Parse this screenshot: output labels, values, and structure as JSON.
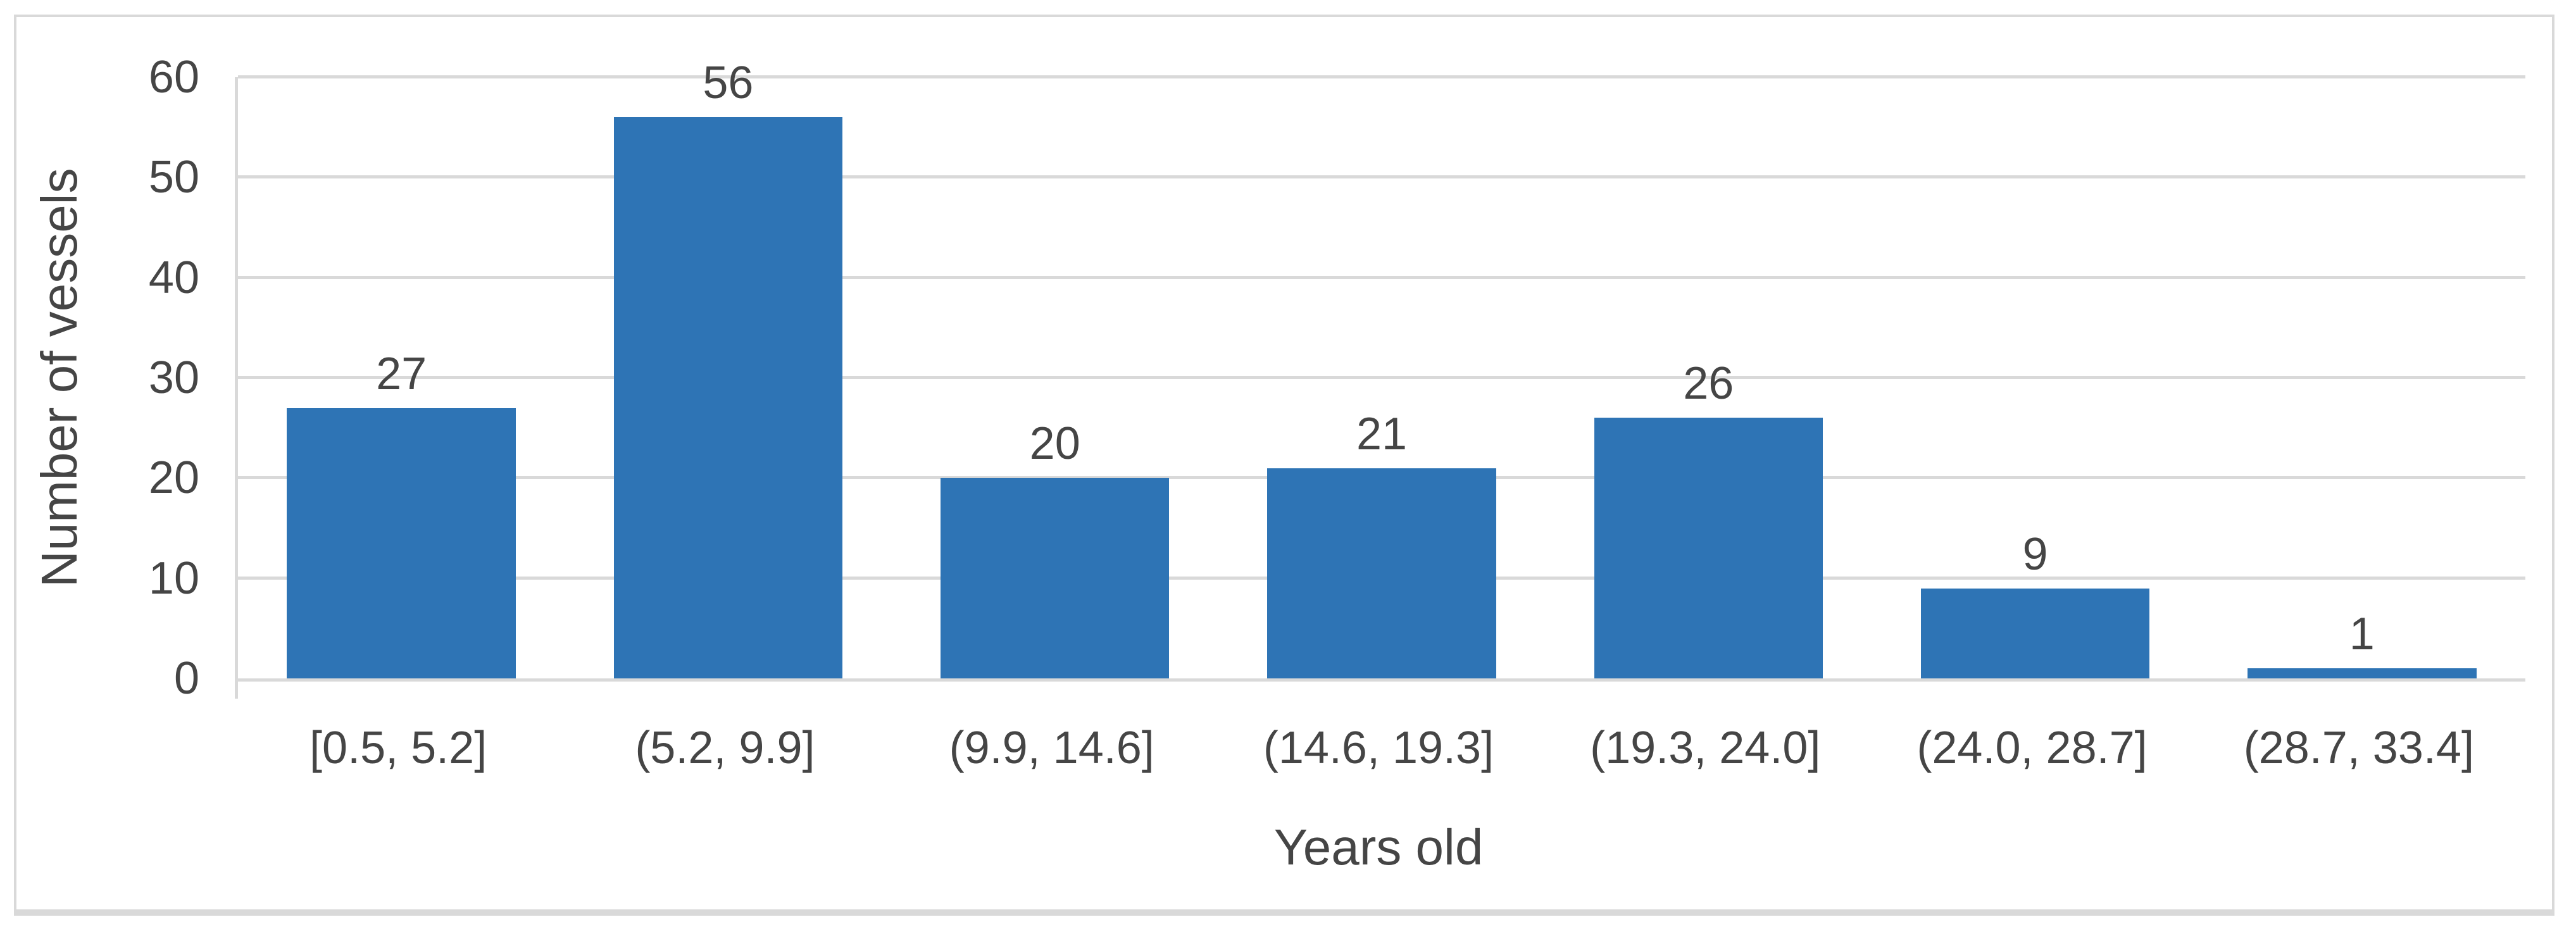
{
  "chart_data": {
    "type": "bar",
    "title": "",
    "categories": [
      "[0.5, 5.2]",
      "(5.2, 9.9]",
      "(9.9, 14.6]",
      "(14.6, 19.3]",
      "(19.3, 24.0]",
      "(24.0, 28.7]",
      "(28.7, 33.4]"
    ],
    "values": [
      27,
      56,
      20,
      21,
      26,
      9,
      1
    ],
    "xlabel": "Years old",
    "ylabel": "Number of vessels",
    "ylim": [
      0,
      60
    ],
    "y_ticks": [
      0,
      10,
      20,
      30,
      40,
      50,
      60
    ],
    "grid": true,
    "legend_position": "none",
    "data_labels": true,
    "colors": {
      "bar": "#2E74B5",
      "gridline": "#D9D9D9",
      "axis_line": "#D9D9D9",
      "text": "#454545",
      "frame_border": "#D9D9D9",
      "background": "#FFFFFF"
    }
  }
}
